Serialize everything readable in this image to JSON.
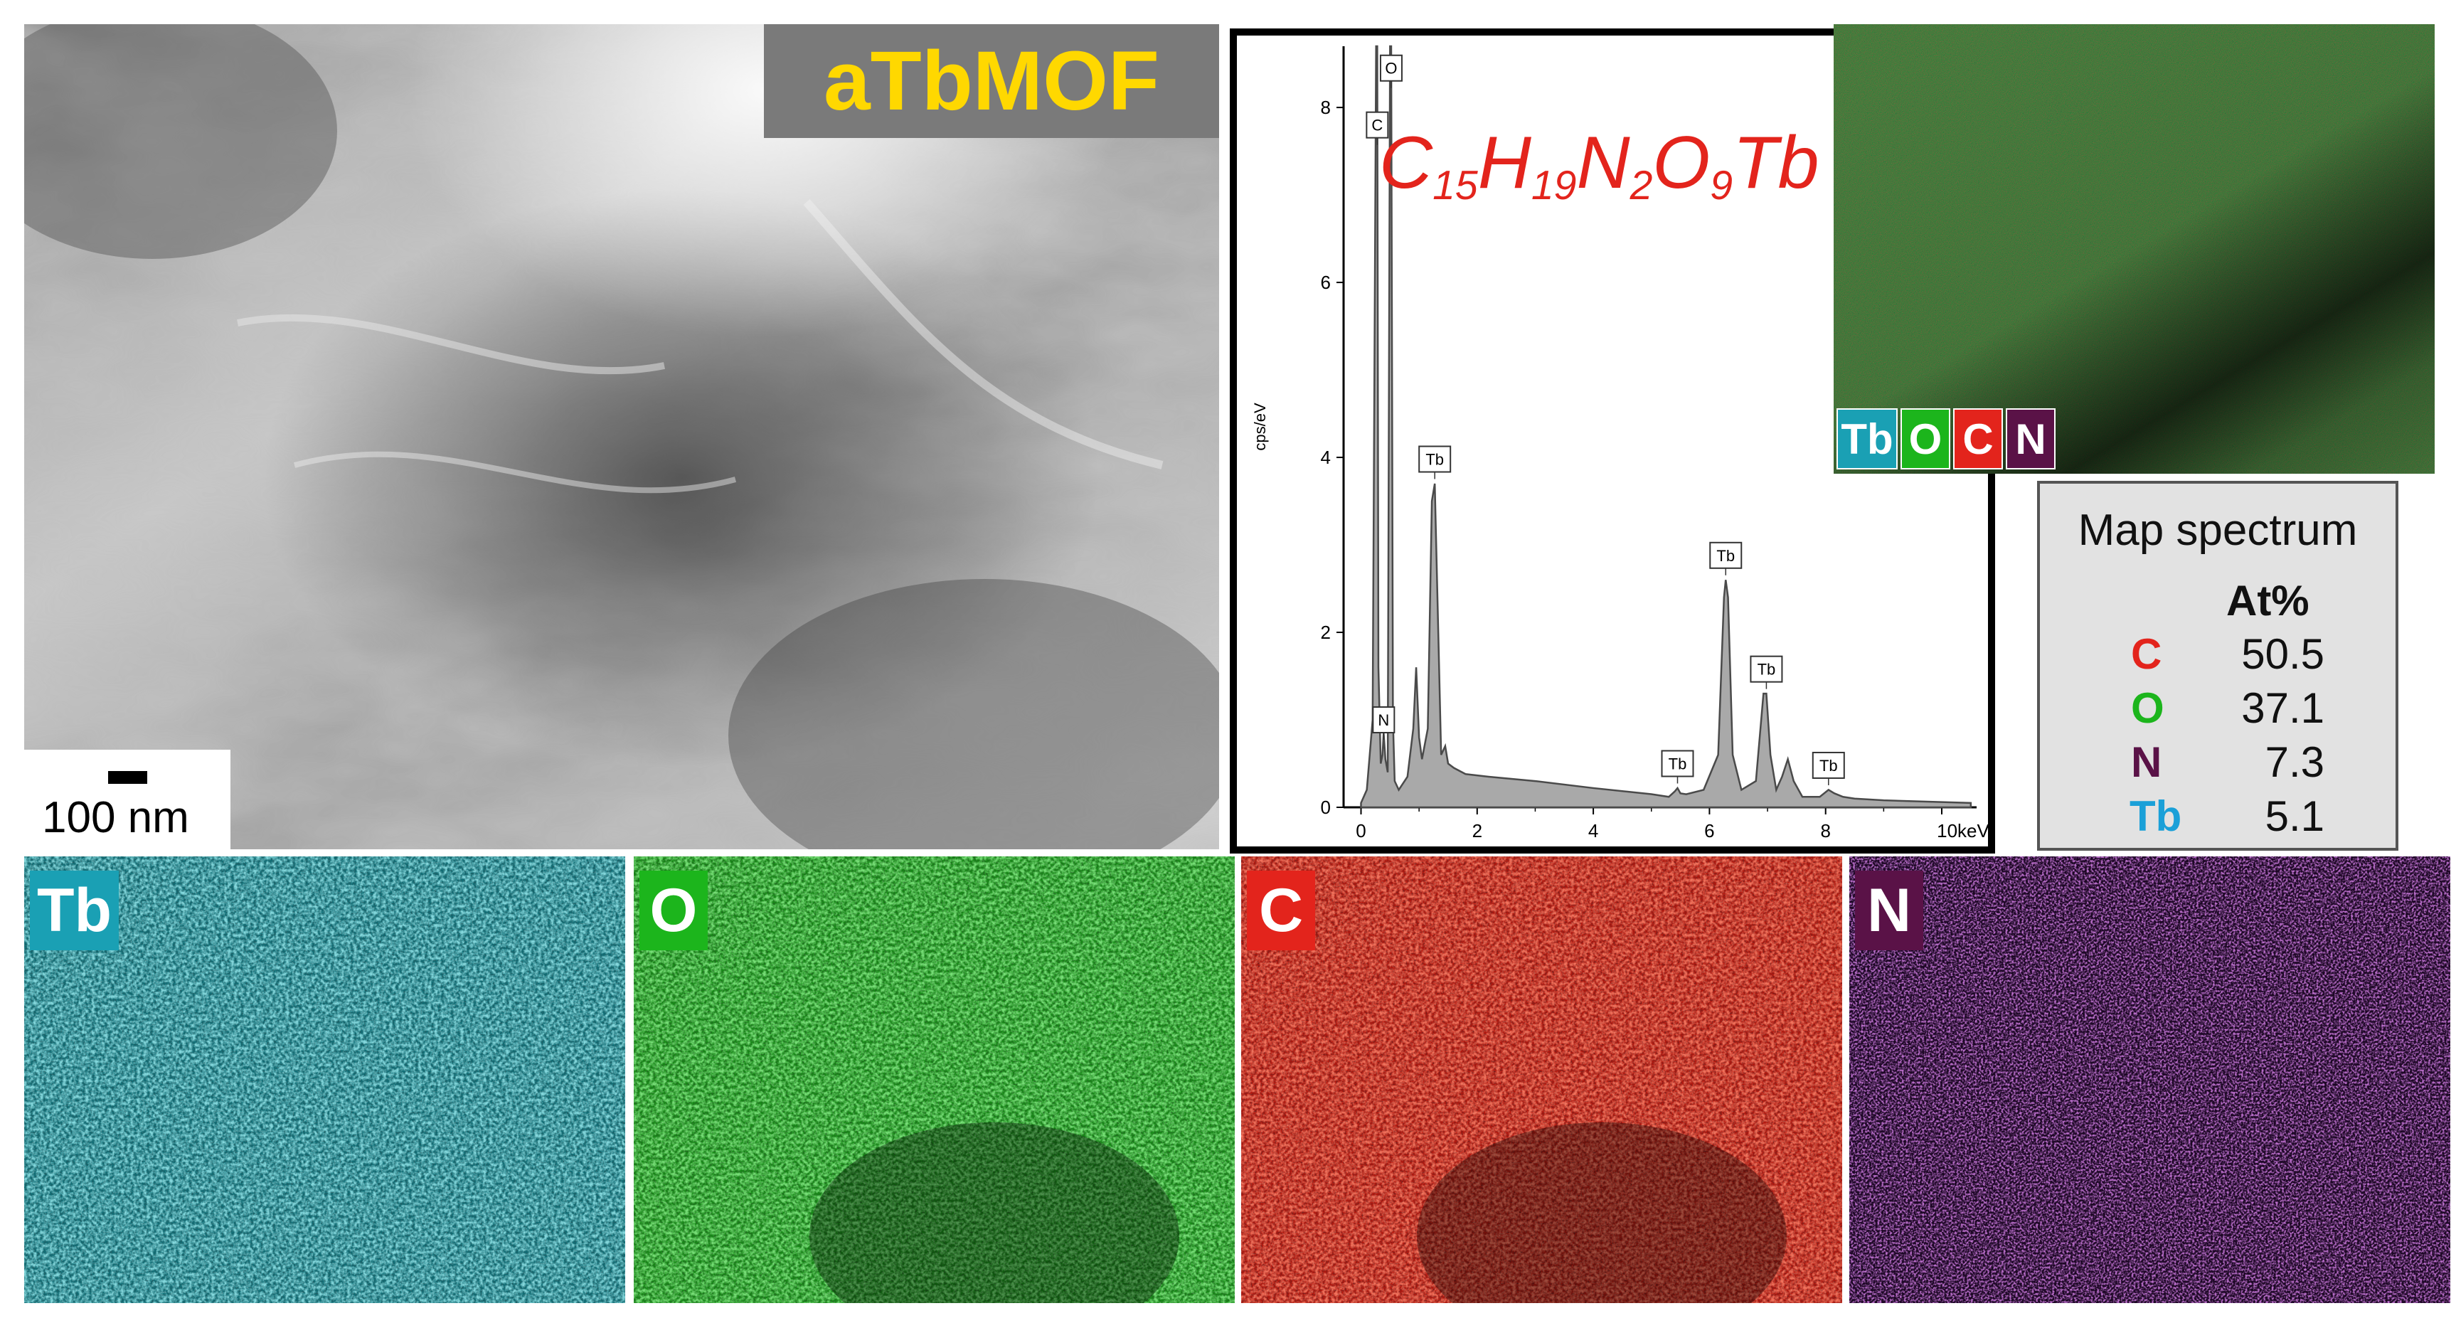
{
  "sem": {
    "title": "aTbMOF",
    "scale_bar_label": "100 nm"
  },
  "formula": {
    "parts": [
      {
        "el": "C",
        "sub": "15"
      },
      {
        "el": "H",
        "sub": "19"
      },
      {
        "el": "N",
        "sub": "2"
      },
      {
        "el": "O",
        "sub": "9"
      },
      {
        "el": "Tb",
        "sub": ""
      }
    ]
  },
  "chart_data": {
    "type": "line",
    "xlabel": "",
    "ylabel": "cps/eV",
    "xlim": [
      -0.3,
      10.6
    ],
    "ylim": [
      0,
      8.7
    ],
    "x_ticks": [
      0,
      2,
      4,
      6,
      8
    ],
    "x_tick_labels": [
      "0",
      "2",
      "4",
      "6",
      "8"
    ],
    "x_end_label": "10keV",
    "y_ticks": [
      0,
      2,
      4,
      6,
      8
    ],
    "y_tick_labels": [
      "0",
      "2",
      "4",
      "6",
      "8"
    ],
    "series": [
      {
        "x": [
          0.0,
          0.1,
          0.2,
          0.26,
          0.28,
          0.3,
          0.34,
          0.37,
          0.39,
          0.42,
          0.46,
          0.5,
          0.52,
          0.55,
          0.58,
          0.65,
          0.8,
          0.9,
          0.95,
          1.0,
          1.05,
          1.15,
          1.22,
          1.27,
          1.32,
          1.38,
          1.45,
          1.5,
          1.6,
          1.8,
          2.2,
          3.0,
          4.0,
          5.0,
          5.3,
          5.4,
          5.45,
          5.5,
          5.6,
          5.9,
          6.15,
          6.25,
          6.28,
          6.32,
          6.4,
          6.55,
          6.8,
          6.93,
          6.98,
          7.05,
          7.15,
          7.25,
          7.35,
          7.45,
          7.6,
          7.9,
          8.05,
          8.15,
          8.3,
          8.5,
          9.0,
          10.0,
          10.5
        ],
        "y": [
          0.05,
          0.2,
          1.0,
          8.7,
          8.7,
          1.6,
          0.5,
          0.6,
          0.85,
          0.55,
          0.4,
          8.7,
          8.7,
          1.0,
          0.3,
          0.2,
          0.35,
          0.9,
          1.6,
          0.8,
          0.55,
          0.9,
          3.5,
          3.7,
          2.3,
          0.6,
          0.7,
          0.5,
          0.45,
          0.38,
          0.35,
          0.3,
          0.22,
          0.15,
          0.12,
          0.18,
          0.22,
          0.16,
          0.15,
          0.2,
          0.6,
          2.4,
          2.6,
          2.4,
          0.6,
          0.2,
          0.3,
          1.3,
          1.3,
          0.6,
          0.2,
          0.35,
          0.55,
          0.3,
          0.12,
          0.12,
          0.2,
          0.16,
          0.12,
          0.1,
          0.08,
          0.06,
          0.05
        ]
      }
    ],
    "annotations": [
      {
        "label": "O",
        "x": 0.52
      },
      {
        "label": "C",
        "x": 0.28
      },
      {
        "label": "N",
        "x": 0.39
      },
      {
        "label": "Tb",
        "x": 1.27
      },
      {
        "label": "Tb",
        "x": 5.45
      },
      {
        "label": "Tb",
        "x": 6.28
      },
      {
        "label": "Tb",
        "x": 6.98
      },
      {
        "label": "Tb",
        "x": 8.05
      }
    ]
  },
  "overlay_map": {
    "tags": [
      {
        "label": "Tb",
        "color": "#1aa0b4"
      },
      {
        "label": "O",
        "color": "#1cb51c"
      },
      {
        "label": "C",
        "color": "#e3241c"
      },
      {
        "label": "N",
        "color": "#5a1247"
      }
    ]
  },
  "map_spectrum": {
    "title": "Map spectrum",
    "column_header": "At%",
    "rows": [
      {
        "element": "C",
        "value": "50.5",
        "color": "#e3241c"
      },
      {
        "element": "O",
        "value": "37.1",
        "color": "#1cb51c"
      },
      {
        "element": "N",
        "value": "7.3",
        "color": "#5a1247"
      },
      {
        "element": "Tb",
        "value": "5.1",
        "color": "#1aa0d8"
      }
    ]
  },
  "element_maps": [
    {
      "label": "Tb",
      "tag_color": "#1aa0b4",
      "base": "#0f6e76",
      "hi": "#4fd3dc",
      "low": "#05191c"
    },
    {
      "label": "O",
      "tag_color": "#1cb51c",
      "base": "#168b16",
      "hi": "#3edc3e",
      "low": "#051a05"
    },
    {
      "label": "C",
      "tag_color": "#e3241c",
      "base": "#b4170e",
      "hi": "#ff3a25",
      "low": "#200404"
    },
    {
      "label": "N",
      "tag_color": "#5a1247",
      "base": "#1a0621",
      "hi": "#b23ad6",
      "low": "#050108"
    }
  ]
}
